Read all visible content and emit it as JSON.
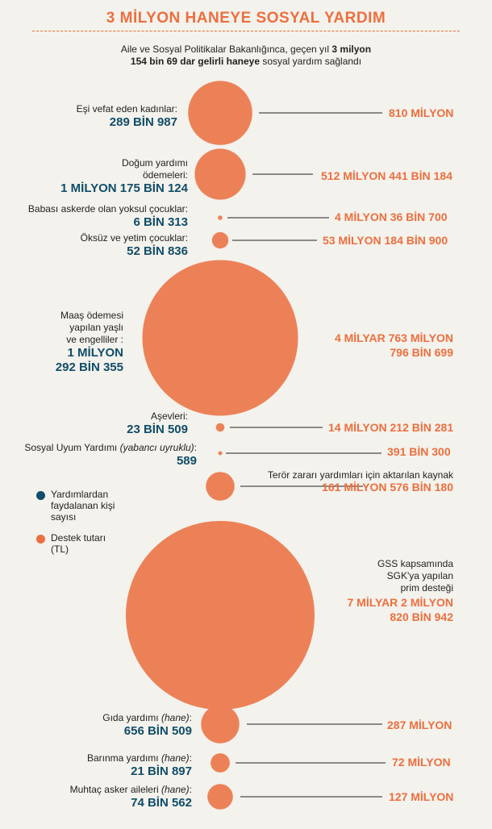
{
  "title": "3 MİLYON HANEYE SOSYAL YARDIM",
  "subtitle": {
    "part1": "Aile ve Sosyal Politikalar Bakanlığınca, geçen yıl ",
    "bold1": "3 milyon",
    "bold2": "154 bin 69 dar gelirli haneye",
    "part2": " sosyal yardım sağlandı"
  },
  "legend": {
    "beneficiaries": "Yardımlardan faydalanan kişi sayısı",
    "amount": "Destek tutarı (TL)",
    "beneficiaries_color": "#0f4d6a",
    "amount_color": "#ec6f3f"
  },
  "colors": {
    "circle": "#ec8158",
    "blue": "#0f4d6a",
    "orange": "#ec6f3f"
  },
  "chart_data": {
    "type": "bubble",
    "title": "3 MİLYON HANEYE SOSYAL YARDIM",
    "items": [
      {
        "label": "Eşi vefat eden kadınlar:",
        "beneficiaries_text": "289 BİN 987",
        "beneficiaries": 289987,
        "amount_text": "810 MİLYON",
        "amount": 810000000
      },
      {
        "label": "Doğum yardımı ödemeleri:",
        "beneficiaries_text": "1 MİLYON 175 BİN 124",
        "beneficiaries": 1175124,
        "amount_text": "512 MİLYON 441 BİN 184",
        "amount": 512441184
      },
      {
        "label": "Babası askerde olan yoksul çocuklar:",
        "beneficiaries_text": "6 BİN 313",
        "beneficiaries": 6313,
        "amount_text": "4 MİLYON 36 BİN 700",
        "amount": 4036700
      },
      {
        "label": "Öksüz ve yetim çocuklar:",
        "beneficiaries_text": "52 BİN 836",
        "beneficiaries": 52836,
        "amount_text": "53 MİLYON 184 BİN 900",
        "amount": 53184900
      },
      {
        "label": "Maaş ödemesi yapılan yaşlı ve engelliler :",
        "beneficiaries_text": "1 MİLYON 292 BİN 355",
        "beneficiaries": 1292355,
        "amount_text": "4 MİLYAR 763 MİLYON 796 BİN 699",
        "amount": 4763796699
      },
      {
        "label": "Aşevleri:",
        "beneficiaries_text": "23 BİN 509",
        "beneficiaries": 23509,
        "amount_text": "14 MİLYON 212 BİN 281",
        "amount": 14212281
      },
      {
        "label": "Sosyal Uyum Yardımı (yabancı uyruklu):",
        "beneficiaries_text": "589",
        "beneficiaries": 589,
        "amount_text": "391 BİN 300",
        "amount": 391300
      },
      {
        "label": "Terör zararı yardımları için aktarılan kaynak",
        "beneficiaries_text": "",
        "beneficiaries": null,
        "amount_text": "161 MİLYON 576 BİN 180",
        "amount": 161576180
      },
      {
        "label": "GSS kapsamında SGK'ya yapılan prim desteği",
        "beneficiaries_text": "",
        "beneficiaries": null,
        "amount_text": "7 MİLYAR 2 MİLYON 820 BİN 942",
        "amount": 7002820942
      },
      {
        "label": "Gıda yardımı (hane):",
        "beneficiaries_text": "656 BİN 509",
        "beneficiaries": 656509,
        "amount_text": "287 MİLYON",
        "amount": 287000000
      },
      {
        "label": "Barınma yardımı (hane):",
        "beneficiaries_text": "21 BİN 897",
        "beneficiaries": 21897,
        "amount_text": "72 MİLYON",
        "amount": 72000000
      },
      {
        "label": "Muhtaç asker aileleri (hane):",
        "beneficiaries_text": "74 BİN 562",
        "beneficiaries": 74562,
        "amount_text": "127 MİLYON",
        "amount": 127000000
      }
    ]
  },
  "labels": {
    "l0_desc": "Eşi vefat eden kadınlar:",
    "l1_desc_a": "Doğum yardımı",
    "l1_desc_b": "ödemeleri:",
    "l2_desc": "Babası askerde olan yoksul çocuklar:",
    "l3_desc": "Öksüz ve yetim çocuklar:",
    "l4_desc_a": "Maaş ödemesi",
    "l4_desc_b": "yapılan yaşlı",
    "l4_desc_c": "ve engelliler :",
    "l4_num_a": "1 MİLYON",
    "l4_num_b": "292 BİN 355",
    "l5_desc": "Aşevleri:",
    "l6_desc_a": "Sosyal Uyum Yardımı ",
    "l6_desc_b": "(yabancı uyruklu)",
    "l6_desc_c": ":",
    "l7_desc": "Terör zararı yardımları için aktarılan kaynak",
    "l8_desc_a": "GSS kapsamında",
    "l8_desc_b": "SGK'ya yapılan",
    "l8_desc_c": "prim desteği",
    "l4_val_a": "4 MİLYAR 763 MİLYON",
    "l4_val_b": "796 BİN 699",
    "l8_val_a": "7 MİLYAR 2 MİLYON",
    "l8_val_b": "820 BİN 942",
    "l9_desc_a": "Gıda yardımı ",
    "l9_desc_b": "(hane)",
    "l9_desc_c": ":",
    "l10_desc_a": "Barınma yardımı ",
    "l10_desc_b": "(hane)",
    "l10_desc_c": ":",
    "l11_desc_a": "Muhtaç asker aileleri ",
    "l11_desc_b": "(hane)",
    "l11_desc_c": ":"
  }
}
